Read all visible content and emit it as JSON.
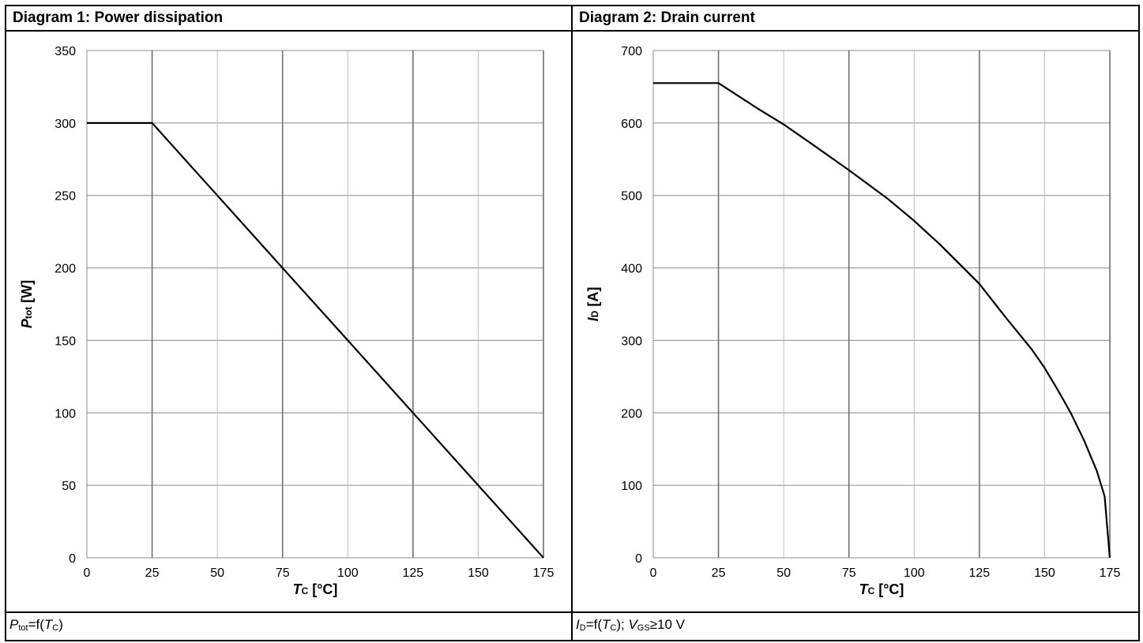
{
  "panels": [
    {
      "title": "Diagram 1: Power dissipation"
    },
    {
      "title": "Diagram 2: Drain current"
    }
  ],
  "footers": [
    {
      "parts": [
        {
          "text": "P",
          "style": "i"
        },
        {
          "text": "tot",
          "style": "sub"
        },
        {
          "text": "=f(",
          "style": ""
        },
        {
          "text": "T",
          "style": "i"
        },
        {
          "text": "C",
          "style": "sub"
        },
        {
          "text": ")",
          "style": ""
        }
      ]
    },
    {
      "parts": [
        {
          "text": "I",
          "style": "i"
        },
        {
          "text": "D",
          "style": "sub"
        },
        {
          "text": "=f(",
          "style": ""
        },
        {
          "text": "T",
          "style": "i"
        },
        {
          "text": "C",
          "style": "sub"
        },
        {
          "text": "); ",
          "style": ""
        },
        {
          "text": "V",
          "style": "i"
        },
        {
          "text": "GS",
          "style": "sub"
        },
        {
          "text": "≥10 V",
          "style": ""
        }
      ]
    }
  ],
  "chart_data": [
    {
      "type": "line",
      "xlabel": "T",
      "xlabel_sub": "C",
      "xlabel_unit": " [°C]",
      "ylabel": "P",
      "ylabel_sub": "tot",
      "ylabel_unit": " [W]",
      "xlim": [
        0,
        175
      ],
      "ylim": [
        0,
        350
      ],
      "xticks": [
        0,
        25,
        50,
        75,
        100,
        125,
        150,
        175
      ],
      "yticks": [
        0,
        50,
        100,
        150,
        200,
        250,
        300,
        350
      ],
      "grid": true,
      "series": [
        {
          "x": [
            0,
            25,
            50,
            75,
            100,
            125,
            150,
            175
          ],
          "y": [
            300,
            300,
            250,
            200,
            150,
            100,
            50,
            0
          ]
        }
      ]
    },
    {
      "type": "line",
      "xlabel": "T",
      "xlabel_sub": "C",
      "xlabel_unit": " [°C]",
      "ylabel": "I",
      "ylabel_sub": "D",
      "ylabel_unit": " [A]",
      "xlim": [
        0,
        175
      ],
      "ylim": [
        0,
        700
      ],
      "xticks": [
        0,
        25,
        50,
        75,
        100,
        125,
        150,
        175
      ],
      "yticks": [
        0,
        100,
        200,
        300,
        400,
        500,
        600,
        700
      ],
      "grid": true,
      "series": [
        {
          "x": [
            0,
            25,
            40,
            50,
            60,
            75,
            90,
            100,
            110,
            125,
            135,
            145,
            150,
            155,
            160,
            165,
            170,
            173,
            175
          ],
          "y": [
            655,
            655,
            620,
            598,
            573,
            535,
            495,
            465,
            432,
            378,
            332,
            288,
            262,
            232,
            200,
            163,
            120,
            85,
            0
          ]
        }
      ]
    }
  ]
}
